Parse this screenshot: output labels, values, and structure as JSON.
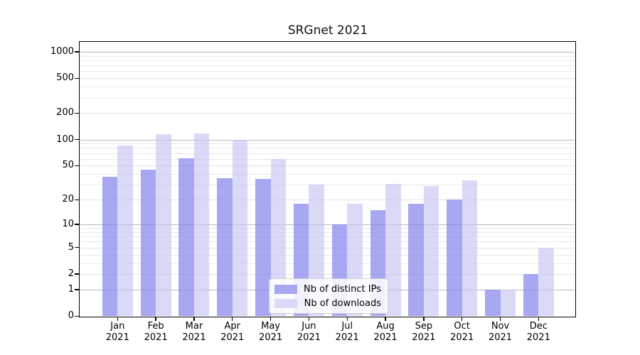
{
  "chart_data": {
    "type": "bar",
    "title": "SRGnet 2021",
    "categories": [
      "Jan 2021",
      "Feb 2021",
      "Mar 2021",
      "Apr 2021",
      "May 2021",
      "Jun 2021",
      "Jul 2021",
      "Aug 2021",
      "Sep 2021",
      "Oct 2021",
      "Nov 2021",
      "Dec 2021"
    ],
    "series": [
      {
        "name": "Nb of distinct IPs",
        "values": [
          37,
          45,
          61,
          36,
          35,
          18,
          10,
          15,
          18,
          20,
          1,
          2
        ],
        "fill": "rgba(131,131,236,0.7)",
        "swatch": "#a8a8f2"
      },
      {
        "name": "Nb of downloads",
        "values": [
          86,
          116,
          118,
          100,
          60,
          30,
          18,
          31,
          29,
          34,
          1,
          5
        ],
        "fill": "rgba(195,195,244,0.62)",
        "swatch": "#dadaf8"
      }
    ],
    "xlabel": "",
    "ylabel": "",
    "yscale": "log10(1+value)",
    "yticks": [
      0,
      1,
      2,
      5,
      10,
      20,
      50,
      100,
      200,
      500,
      1000
    ],
    "yticks_minor": [
      3,
      4,
      6,
      7,
      8,
      9,
      30,
      40,
      60,
      70,
      80,
      90,
      300,
      400,
      600,
      700,
      800,
      900
    ],
    "ylim": [
      0,
      1280
    ],
    "grid": true,
    "legend_position": "inside lower-center",
    "colors": {
      "grid_decade": "#bababa",
      "grid_labeled": "#e2e2e2",
      "grid_minor": "#e9e9e9",
      "spine": "#000000",
      "text": "#000000",
      "background": "#ffffff"
    }
  }
}
